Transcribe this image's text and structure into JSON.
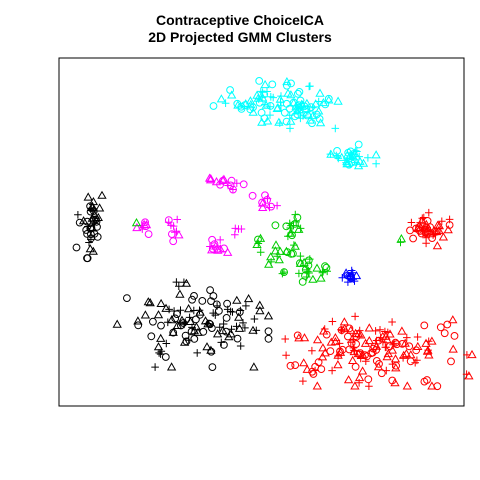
{
  "chart_data": {
    "type": "scatter",
    "title": "Contraceptive ChoiceICA",
    "subtitle": "2D Projected GMM Clusters",
    "xlabel": "",
    "ylabel": "",
    "axes": "none",
    "grid": false,
    "legend": "none",
    "xlim": [
      0,
      100
    ],
    "ylim": [
      0,
      100
    ],
    "marker_shapes": [
      "circle",
      "triangle",
      "plus"
    ],
    "clusters": [
      {
        "color": "#00FFFF",
        "label": "",
        "center": [
          52,
          90
        ],
        "spread": [
          7,
          3
        ],
        "count": 70,
        "note": "upper-left part of top cyan group"
      },
      {
        "color": "#00FFFF",
        "label": "",
        "center": [
          61,
          86
        ],
        "spread": [
          4,
          2
        ],
        "count": 35
      },
      {
        "color": "#00FFFF",
        "label": "",
        "center": [
          73,
          73
        ],
        "spread": [
          3,
          2
        ],
        "count": 35
      },
      {
        "color": "#FF00FF",
        "label": "",
        "center": [
          41,
          65
        ],
        "spread": [
          2,
          1.2
        ],
        "count": 15
      },
      {
        "color": "#FF00FF",
        "label": "",
        "center": [
          51,
          59
        ],
        "spread": [
          1.5,
          1
        ],
        "count": 10
      },
      {
        "color": "#FF00FF",
        "label": "",
        "center": [
          20,
          52
        ],
        "spread": [
          1,
          1.2
        ],
        "count": 8
      },
      {
        "color": "#FF00FF",
        "label": "",
        "center": [
          27,
          50.5
        ],
        "spread": [
          1.2,
          1.5
        ],
        "count": 10
      },
      {
        "color": "#FF00FF",
        "label": "",
        "center": [
          39,
          46
        ],
        "spread": [
          1.3,
          1.8
        ],
        "count": 12
      },
      {
        "color": "#FF00FF",
        "label": "",
        "center": [
          44,
          50
        ],
        "spread": [
          0.8,
          1
        ],
        "count": 4
      },
      {
        "color": "#000000",
        "label": "",
        "center": [
          5.5,
          53
        ],
        "spread": [
          1.5,
          5
        ],
        "count": 40
      },
      {
        "color": "#000000",
        "label": "",
        "center": [
          32,
          22
        ],
        "spread": [
          9,
          6
        ],
        "count": 120
      },
      {
        "color": "#00CC00",
        "label": "",
        "center": [
          58,
          48
        ],
        "spread": [
          2,
          4
        ],
        "count": 25
      },
      {
        "color": "#00CC00",
        "label": "",
        "center": [
          49,
          46
        ],
        "spread": [
          0.8,
          1.2
        ],
        "count": 5
      },
      {
        "color": "#00CC00",
        "label": "",
        "center": [
          53,
          42
        ],
        "spread": [
          1,
          1
        ],
        "count": 6
      },
      {
        "color": "#00CC00",
        "label": "",
        "center": [
          62,
          39
        ],
        "spread": [
          3,
          2
        ],
        "count": 25
      },
      {
        "color": "#0000FF",
        "label": "",
        "center": [
          73,
          36.5
        ],
        "spread": [
          1.2,
          0.8
        ],
        "count": 15
      },
      {
        "color": "#FF0000",
        "label": "",
        "center": [
          92,
          51
        ],
        "spread": [
          3,
          2.5
        ],
        "count": 45
      },
      {
        "color": "#FF0000",
        "label": "",
        "center": [
          78,
          14
        ],
        "spread": [
          12,
          5
        ],
        "count": 160
      },
      {
        "color": "#00CC00",
        "label": "",
        "center": [
          85.5,
          47.5
        ],
        "spread": [
          0.5,
          0.5
        ],
        "count": 2
      },
      {
        "color": "#00CC00",
        "label": "",
        "center": [
          17,
          53
        ],
        "spread": [
          0.4,
          0.4
        ],
        "count": 1
      }
    ]
  }
}
